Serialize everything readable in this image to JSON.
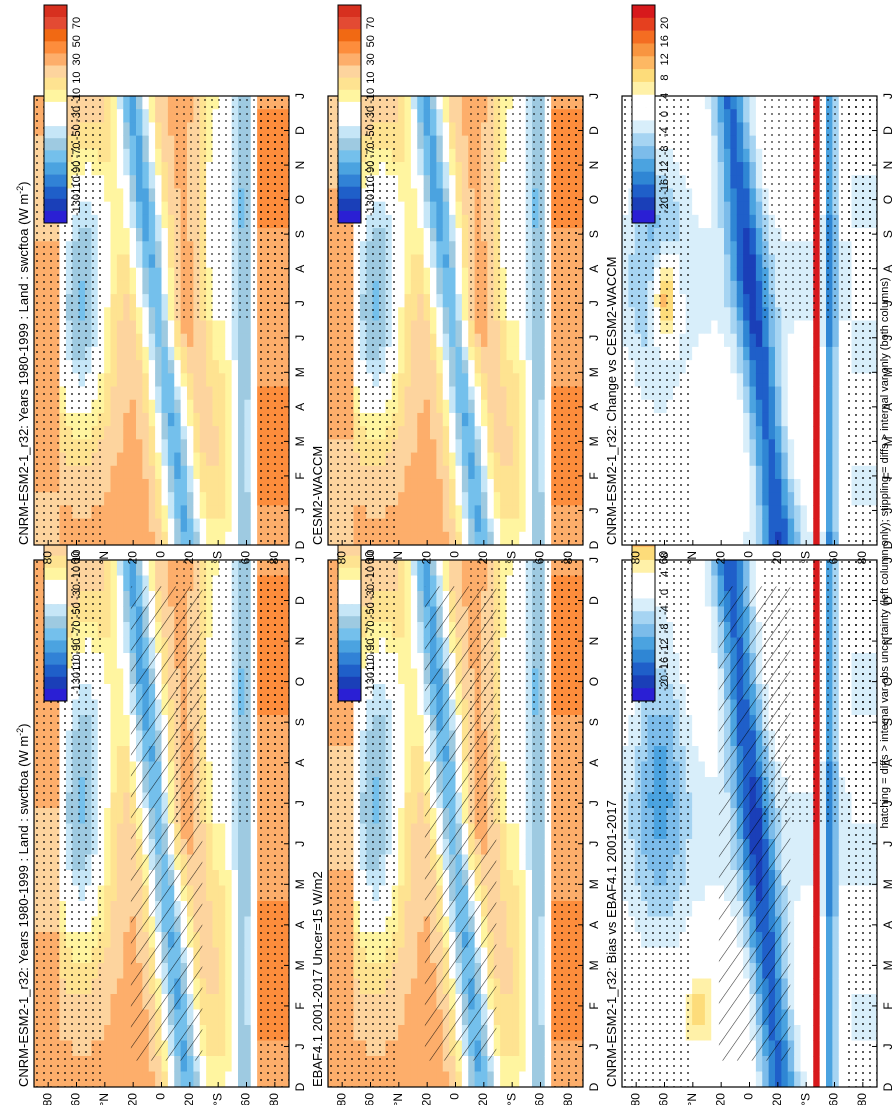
{
  "figure_caption": "hatching = diffs > internal var-obs uncertainty (left column only); stippling = diffs > internal var only (both columns)",
  "colors": {
    "mean": [
      "#d7301f",
      "#e34a33",
      "#f16913",
      "#fd8d3c",
      "#fdae6b",
      "#fdd49e",
      "#fee391",
      "#fff5a0",
      "#ffffff",
      "#ffffff",
      "#c6e6f7",
      "#9ecae1",
      "#74c0ec",
      "#4ba3e0",
      "#3182d6",
      "#1f5fc9",
      "#1a3fb8",
      "#2a1fd4"
    ],
    "diff": [
      "#d7191c",
      "#e5401f",
      "#f46d22",
      "#f89540",
      "#fdb863",
      "#fddc7a",
      "#fff1a8",
      "#ffffff",
      "#ffffff",
      "#d8eefa",
      "#a6d4f2",
      "#7cbcea",
      "#4ba3e0",
      "#2f86d4",
      "#1f5fc9",
      "#1a3fb8",
      "#2a1fd4"
    ]
  },
  "chart_data": [
    {
      "type": "heatmap",
      "id": "model",
      "title": "CNRM-ESM2-1_r32: Years 1980-1999 : Land : swcftoa (W m",
      "title_sup": "-2",
      "title_end": ")",
      "x_labels": [
        "D",
        "J",
        "F",
        "M",
        "A",
        "M",
        "J",
        "J",
        "A",
        "S",
        "O",
        "N",
        "D",
        "J"
      ],
      "y_labels": [
        "80",
        "60",
        "°N",
        "20",
        "0",
        "20",
        "°S",
        "60",
        "80"
      ],
      "y_values": [
        80,
        60,
        40,
        20,
        0,
        -20,
        -40,
        -60,
        -80
      ],
      "colorbar_labels": [
        "70",
        "50",
        "30",
        "10",
        "-10",
        "-30",
        "-50",
        "-70",
        "-90",
        "-110",
        "-130"
      ],
      "colorbar_range": [
        90,
        -150
      ],
      "palette": "mean",
      "hatching": true
    },
    {
      "type": "heatmap",
      "id": "obs",
      "title": "EBAF4.1 2001-2017 Uncer=15 W/m2",
      "x_labels": [
        "D",
        "J",
        "F",
        "M",
        "A",
        "M",
        "J",
        "J",
        "A",
        "S",
        "O",
        "N",
        "D",
        "J"
      ],
      "y_labels": [
        "80",
        "60",
        "°N",
        "20",
        "0",
        "20",
        "°S",
        "60",
        "80"
      ],
      "y_values": [
        80,
        60,
        40,
        20,
        0,
        -20,
        -40,
        -60,
        -80
      ],
      "colorbar_labels": [
        "70",
        "50",
        "30",
        "10",
        "-10",
        "-30",
        "-50",
        "-70",
        "-90",
        "-110",
        "-130"
      ],
      "colorbar_range": [
        90,
        -150
      ],
      "palette": "mean",
      "hatching": true
    },
    {
      "type": "heatmap",
      "id": "bias",
      "title": "CNRM-ESM2-1_r32: Bias vs EBAF4.1 2001-2017",
      "x_labels": [
        "D",
        "J",
        "F",
        "M",
        "A",
        "M",
        "J",
        "J",
        "A",
        "S",
        "O",
        "N",
        "D",
        "J"
      ],
      "y_labels": [
        "80",
        "60",
        "°N",
        "20",
        "0",
        "20",
        "°S",
        "60",
        "80"
      ],
      "y_values": [
        80,
        60,
        40,
        20,
        0,
        -20,
        -40,
        -60,
        -80
      ],
      "colorbar_labels": [
        "20",
        "16",
        "12",
        "8",
        "4",
        "0",
        "-4",
        "-8",
        "-12",
        "-16",
        "-20"
      ],
      "colorbar_range": [
        24,
        -24
      ],
      "palette": "diff",
      "hatching": true
    },
    {
      "type": "heatmap",
      "id": "ref_model",
      "title": "CNRM-ESM2-1_r32: Years 1980-1999 : Land : swcftoa (W m",
      "title_sup": "-2",
      "title_end": ")",
      "x_labels": [
        "D",
        "J",
        "F",
        "M",
        "A",
        "M",
        "J",
        "J",
        "A",
        "S",
        "O",
        "N",
        "D",
        "J"
      ],
      "y_labels": [
        "80",
        "60",
        "°N",
        "20",
        "0",
        "20",
        "°S",
        "60",
        "80"
      ],
      "y_values": [
        80,
        60,
        40,
        20,
        0,
        -20,
        -40,
        -60,
        -80
      ],
      "colorbar_labels": [
        "70",
        "50",
        "30",
        "10",
        "-10",
        "-30",
        "-50",
        "-70",
        "-90",
        "-110",
        "-130"
      ],
      "colorbar_range": [
        90,
        -150
      ],
      "palette": "mean",
      "hatching": false
    },
    {
      "type": "heatmap",
      "id": "ref_cesm",
      "title": "CESM2-WACCM",
      "x_labels": [
        "D",
        "J",
        "F",
        "M",
        "A",
        "M",
        "J",
        "J",
        "A",
        "S",
        "O",
        "N",
        "D",
        "J"
      ],
      "y_labels": [
        "80",
        "60",
        "°N",
        "20",
        "0",
        "20",
        "°S",
        "60",
        "80"
      ],
      "y_values": [
        80,
        60,
        40,
        20,
        0,
        -20,
        -40,
        -60,
        -80
      ],
      "colorbar_labels": [
        "70",
        "50",
        "30",
        "10",
        "-10",
        "-30",
        "-50",
        "-70",
        "-90",
        "-110",
        "-130"
      ],
      "colorbar_range": [
        90,
        -150
      ],
      "palette": "mean",
      "hatching": false
    },
    {
      "type": "heatmap",
      "id": "change",
      "title": "CNRM-ESM2-1_r32: Change vs CESM2-WACCM",
      "x_labels": [
        "D",
        "J",
        "F",
        "M",
        "A",
        "M",
        "J",
        "J",
        "A",
        "S",
        "O",
        "N",
        "D",
        "J"
      ],
      "y_labels": [
        "80",
        "60",
        "°N",
        "20",
        "0",
        "20",
        "°S",
        "60",
        "80"
      ],
      "y_values": [
        80,
        60,
        40,
        20,
        0,
        -20,
        -40,
        -60,
        -80
      ],
      "colorbar_labels": [
        "20",
        "16",
        "12",
        "8",
        "4",
        "0",
        "-4",
        "-8",
        "-12",
        "-16",
        "-20"
      ],
      "colorbar_range": [
        24,
        -24
      ],
      "palette": "diff",
      "hatching": false
    }
  ]
}
